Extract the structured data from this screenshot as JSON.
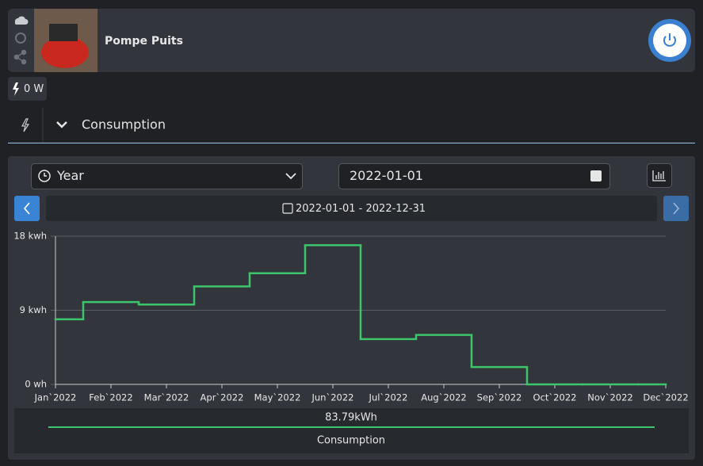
{
  "device": {
    "name": "Pompe Puits"
  },
  "power_badge": "0 W",
  "section": {
    "title": "Consumption"
  },
  "controls": {
    "period": "Year",
    "date": "2022-01-01",
    "range": "2022-01-01 - 2022-12-31"
  },
  "chart_data": {
    "type": "line",
    "step": "middle",
    "categories": [
      "Jan`2022",
      "Feb`2022",
      "Mar`2022",
      "Apr`2022",
      "May`2022",
      "Jun`2022",
      "Jul`2022",
      "Aug`2022",
      "Sep`2022",
      "Oct`2022",
      "Nov`2022",
      "Dec`2022"
    ],
    "series": [
      {
        "name": "Consumption",
        "color": "#3cc56b",
        "values": [
          7.9,
          10.0,
          9.7,
          11.9,
          13.5,
          16.9,
          5.5,
          6.0,
          2.1,
          0,
          0,
          0
        ]
      }
    ],
    "ylim": [
      0,
      18
    ],
    "yticks": [
      {
        "value": 0,
        "label": "0 wh"
      },
      {
        "value": 9,
        "label": "9 kwh"
      },
      {
        "value": 18,
        "label": "18 kwh"
      }
    ],
    "grid": true,
    "total": "83.79kWh"
  }
}
